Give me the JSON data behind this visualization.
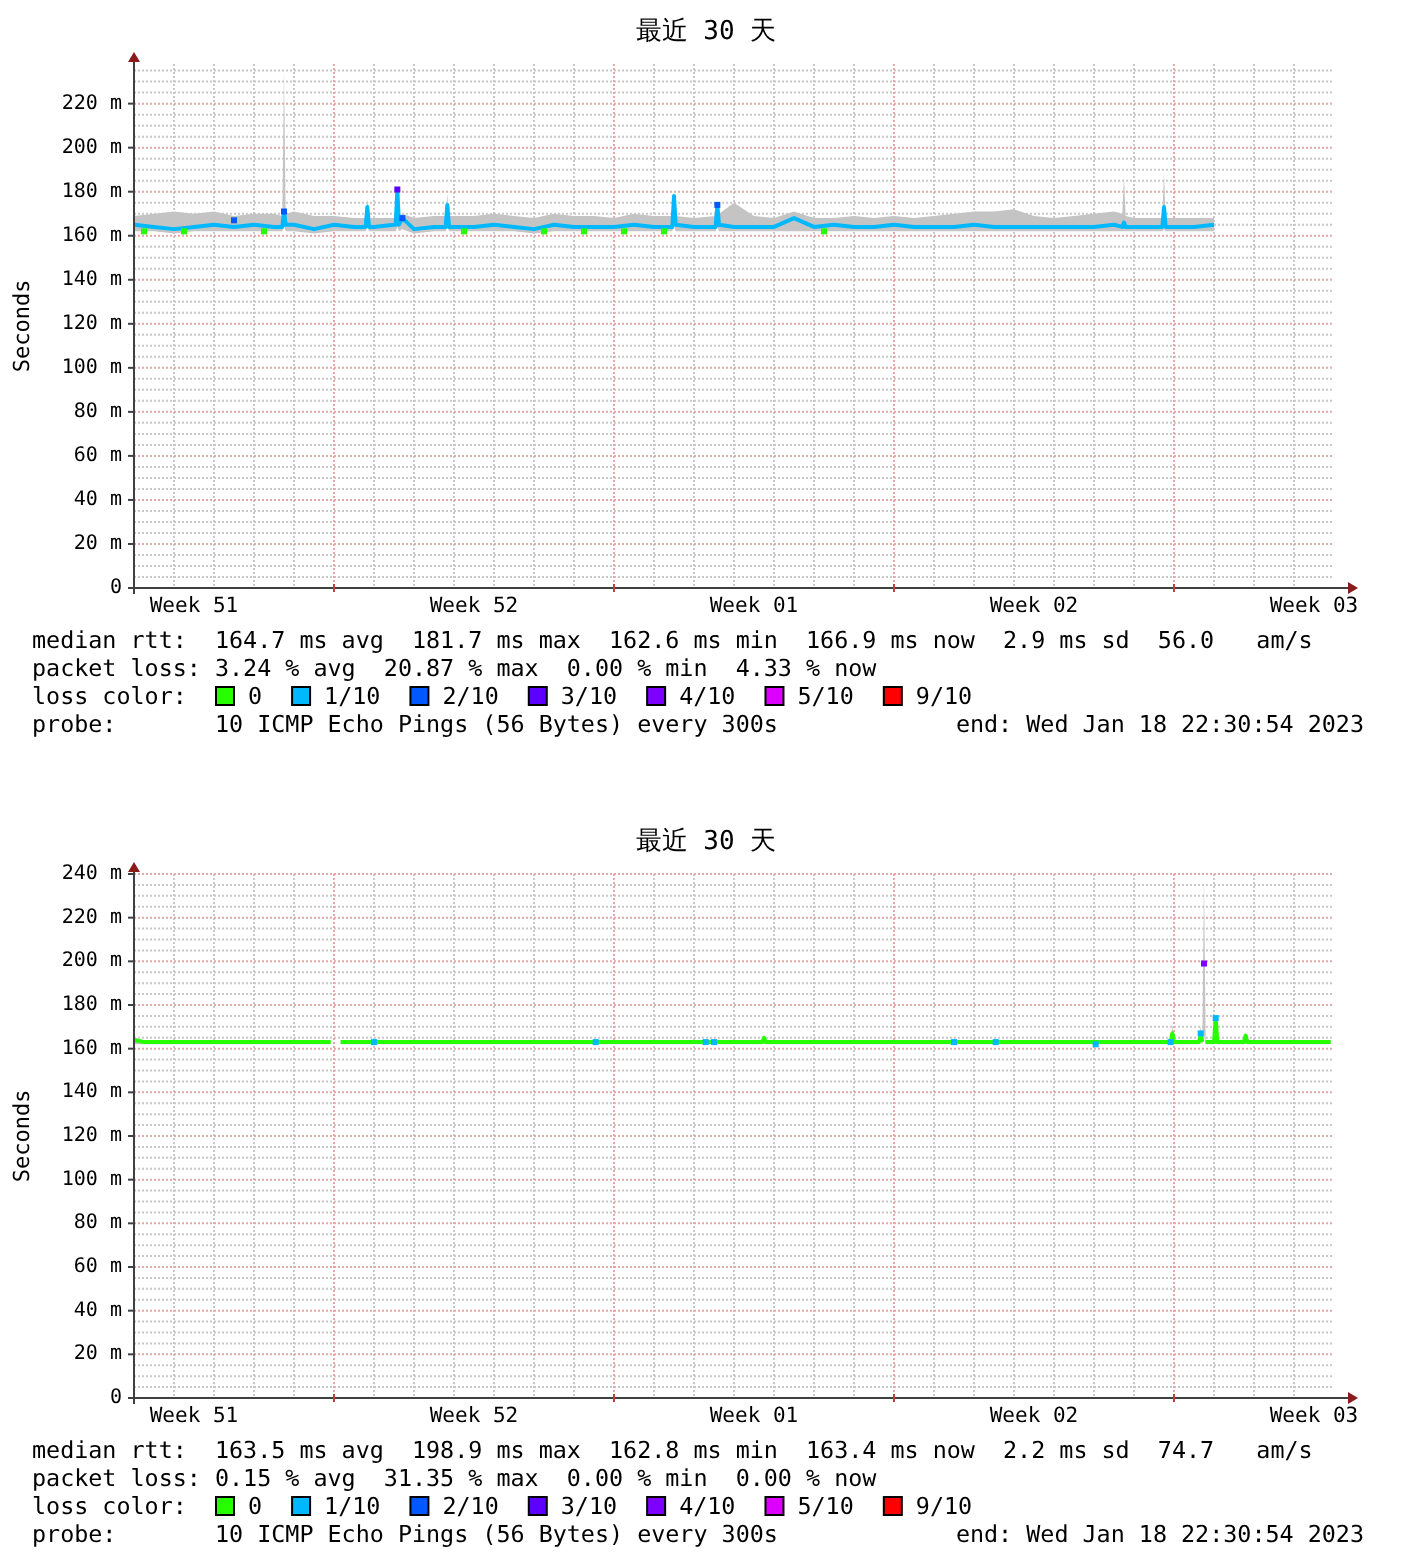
{
  "chart_data": [
    {
      "type": "line",
      "title": "最近 30 天",
      "ylabel": "Seconds",
      "xlim": [
        "2022-12-20T00:00",
        "2023-01-19T00:00"
      ],
      "xticks": [
        {
          "value": "2022-12-21T12:00",
          "label": "Week 51"
        },
        {
          "value": "2022-12-25T00:00",
          "label": null
        },
        {
          "value": "2022-12-28T12:00",
          "label": "Week 52"
        },
        {
          "value": "2023-01-01T00:00",
          "label": null
        },
        {
          "value": "2023-01-04T12:00",
          "label": "Week 01"
        },
        {
          "value": "2023-01-08T00:00",
          "label": null
        },
        {
          "value": "2023-01-11T12:00",
          "label": "Week 02"
        },
        {
          "value": "2023-01-15T00:00",
          "label": null
        },
        {
          "value": "2023-01-18T12:00",
          "label": "Week 03"
        }
      ],
      "ylim": [
        0,
        238
      ],
      "yticks": [
        0,
        {
          "value": 20,
          "label": "20 m"
        },
        {
          "value": 40,
          "label": "40 m"
        },
        {
          "value": 60,
          "label": "60 m"
        },
        {
          "value": 80,
          "label": "80 m"
        },
        {
          "value": 100,
          "label": "100 m"
        },
        {
          "value": 120,
          "label": "120 m"
        },
        {
          "value": 140,
          "label": "140 m"
        },
        {
          "value": 160,
          "label": "160 m"
        },
        {
          "value": 180,
          "label": "180 m"
        },
        {
          "value": 200,
          "label": "200 m"
        },
        {
          "value": 220,
          "label": "220 m"
        }
      ],
      "grid": true,
      "legend": "bottom",
      "legend_title": "loss color:",
      "annotations": [
        "median rtt:  164.7 ms avg  181.7 ms max  162.6 ms min  166.9 ms now  2.9 ms sd  56.0   am/s",
        "packet loss: 3.24 % avg  20.87 % max  0.00 % min  4.33 % now",
        "probe:       10 ICMP Echo Pings (56 Bytes) every 300s",
        "end: Wed Jan 18 22:30:54 2023"
      ],
      "series": [
        {
          "name": "0",
          "color": "#26ff00",
          "type": "scatter",
          "marker": "square",
          "x": [
            "2022-12-20T06:00",
            "2022-12-21T06:00",
            "2022-12-23T06:00",
            "2022-12-28T06:00",
            "2022-12-30T06:00",
            "2022-12-31T06:00",
            "2023-01-01T06:00",
            "2023-01-02T06:00",
            "2023-01-06T06:00"
          ],
          "values": [
            162,
            162,
            162,
            162,
            162,
            162,
            162,
            162,
            162
          ]
        },
        {
          "name": "1/10",
          "color": "#00b8ff",
          "x": [
            "2022-12-20T00:00",
            "2022-12-20T12:00",
            "2022-12-21T00:00",
            "2022-12-21T12:00",
            "2022-12-22T00:00",
            "2022-12-22T12:00",
            "2022-12-23T00:00",
            "2022-12-23T12:00",
            "2022-12-23T17:00",
            "2022-12-23T18:00",
            "2022-12-23T19:00",
            "2022-12-24T00:00",
            "2022-12-24T12:00",
            "2022-12-25T00:00",
            "2022-12-25T12:00",
            "2022-12-25T19:00",
            "2022-12-25T20:00",
            "2022-12-25T21:00",
            "2022-12-26T00:00",
            "2022-12-26T12:00",
            "2022-12-26T13:00",
            "2022-12-26T14:00",
            "2022-12-26T15:00",
            "2022-12-26T17:00",
            "2022-12-27T00:00",
            "2022-12-27T12:00",
            "2022-12-27T19:00",
            "2022-12-27T20:00",
            "2022-12-27T21:00",
            "2022-12-28T00:00",
            "2022-12-28T12:00",
            "2022-12-29T00:00",
            "2022-12-29T12:00",
            "2022-12-30T00:00",
            "2022-12-30T12:00",
            "2022-12-31T00:00",
            "2022-12-31T12:00",
            "2023-01-01T00:00",
            "2023-01-01T12:00",
            "2023-01-02T00:00",
            "2023-01-02T11:00",
            "2023-01-02T12:00",
            "2023-01-02T13:00",
            "2023-01-03T00:00",
            "2023-01-03T13:00",
            "2023-01-03T14:00",
            "2023-01-03T15:00",
            "2023-01-04T00:00",
            "2023-01-04T12:00",
            "2023-01-05T00:00",
            "2023-01-05T12:00",
            "2023-01-06T00:00",
            "2023-01-06T12:00",
            "2023-01-07T00:00",
            "2023-01-07T12:00",
            "2023-01-08T00:00",
            "2023-01-08T12:00",
            "2023-01-09T00:00",
            "2023-01-09T12:00",
            "2023-01-10T00:00",
            "2023-01-10T12:00",
            "2023-01-11T00:00",
            "2023-01-11T12:00",
            "2023-01-12T00:00",
            "2023-01-12T12:00",
            "2023-01-13T00:00",
            "2023-01-13T12:00",
            "2023-01-13T17:00",
            "2023-01-13T18:00",
            "2023-01-13T19:00",
            "2023-01-14T00:00",
            "2023-01-14T12:00",
            "2023-01-14T17:00",
            "2023-01-14T18:00",
            "2023-01-14T19:00",
            "2023-01-15T00:00",
            "2023-01-15T12:00",
            "2023-01-16T00:00"
          ],
          "values": [
            165,
            164,
            163,
            164,
            165,
            164,
            165,
            164,
            164,
            171,
            165,
            165,
            163,
            165,
            164,
            164,
            173,
            164,
            164,
            165,
            165,
            181,
            165,
            168,
            163,
            164,
            164,
            174,
            164,
            164,
            164,
            165,
            164,
            163,
            165,
            164,
            164,
            164,
            165,
            164,
            164,
            178,
            165,
            164,
            164,
            174,
            165,
            164,
            164,
            164,
            168,
            164,
            165,
            164,
            164,
            165,
            164,
            164,
            164,
            165,
            164,
            164,
            164,
            164,
            164,
            164,
            165,
            164,
            166,
            164,
            164,
            164,
            164,
            173,
            164,
            164,
            164,
            165
          ],
          "lower": [
            162,
            162,
            161,
            162,
            162,
            162,
            162,
            162,
            162,
            165,
            162,
            162,
            161,
            162,
            162,
            162,
            164,
            162,
            162,
            162,
            162,
            164,
            162,
            163,
            161,
            162,
            162,
            164,
            162,
            162,
            162,
            162,
            162,
            161,
            162,
            162,
            162,
            162,
            162,
            162,
            162,
            165,
            162,
            162,
            162,
            164,
            162,
            162,
            162,
            162,
            162,
            162,
            162,
            162,
            162,
            162,
            162,
            162,
            162,
            162,
            162,
            162,
            162,
            162,
            162,
            162,
            162,
            162,
            162,
            162,
            162,
            162,
            162,
            163,
            162,
            162,
            162,
            162
          ],
          "upper": [
            169,
            170,
            171,
            170,
            171,
            169,
            170,
            170,
            169,
            236,
            170,
            171,
            169,
            169,
            168,
            168,
            177,
            168,
            168,
            168,
            168,
            182,
            169,
            170,
            168,
            169,
            169,
            179,
            169,
            169,
            169,
            170,
            169,
            168,
            170,
            169,
            169,
            168,
            170,
            169,
            169,
            180,
            169,
            168,
            169,
            176,
            170,
            175,
            169,
            168,
            171,
            168,
            168,
            169,
            168,
            169,
            168,
            169,
            170,
            171,
            171,
            172,
            169,
            168,
            169,
            170,
            171,
            170,
            187,
            169,
            168,
            168,
            168,
            189,
            168,
            168,
            168,
            168
          ]
        },
        {
          "name": "2/10",
          "color": "#0059ff",
          "type": "scatter",
          "marker": "square",
          "x": [
            "2022-12-22T12:00",
            "2022-12-23T18:00",
            "2022-12-26T17:00",
            "2023-01-03T14:00"
          ],
          "values": [
            167,
            171,
            168,
            174
          ]
        },
        {
          "name": "3/10",
          "color": "#5e00ff",
          "type": "scatter",
          "marker": "square",
          "x": [
            "2022-12-26T14:00"
          ],
          "values": [
            181
          ]
        },
        {
          "name": "4/10",
          "color": "#7e00ff",
          "type": "scatter"
        },
        {
          "name": "5/10",
          "color": "#dd00ff",
          "type": "scatter"
        },
        {
          "name": "9/10",
          "color": "#ff0000",
          "type": "scatter"
        }
      ]
    },
    {
      "type": "line",
      "title": "最近 30 天",
      "ylabel": "Seconds",
      "xlim": [
        "2022-12-20T00:00",
        "2023-01-19T00:00"
      ],
      "xticks": [
        {
          "value": "2022-12-21T12:00",
          "label": "Week 51"
        },
        {
          "value": "2022-12-25T00:00",
          "label": null
        },
        {
          "value": "2022-12-28T12:00",
          "label": "Week 52"
        },
        {
          "value": "2023-01-01T00:00",
          "label": null
        },
        {
          "value": "2023-01-04T12:00",
          "label": "Week 01"
        },
        {
          "value": "2023-01-08T00:00",
          "label": null
        },
        {
          "value": "2023-01-11T12:00",
          "label": "Week 02"
        },
        {
          "value": "2023-01-15T00:00",
          "label": null
        },
        {
          "value": "2023-01-18T12:00",
          "label": "Week 03"
        }
      ],
      "ylim": [
        0,
        240
      ],
      "yticks": [
        0,
        {
          "value": 20,
          "label": "20 m"
        },
        {
          "value": 40,
          "label": "40 m"
        },
        {
          "value": 60,
          "label": "60 m"
        },
        {
          "value": 80,
          "label": "80 m"
        },
        {
          "value": 100,
          "label": "100 m"
        },
        {
          "value": 120,
          "label": "120 m"
        },
        {
          "value": 140,
          "label": "140 m"
        },
        {
          "value": 160,
          "label": "160 m"
        },
        {
          "value": 180,
          "label": "180 m"
        },
        {
          "value": 200,
          "label": "200 m"
        },
        {
          "value": 220,
          "label": "220 m"
        },
        {
          "value": 240,
          "label": "240 m"
        }
      ],
      "grid": true,
      "legend": "bottom",
      "legend_title": "loss color:",
      "annotations": [
        "median rtt:  163.5 ms avg  198.9 ms max  162.8 ms min  163.4 ms now  2.2 ms sd  74.7   am/s",
        "packet loss: 0.15 % avg  31.35 % max  0.00 % min  0.00 % now",
        "probe:       10 ICMP Echo Pings (56 Bytes) every 300s",
        "end: Wed Jan 18 22:30:54 2023"
      ],
      "series": [
        {
          "name": "0",
          "color": "#26ff00",
          "x": [
            "2022-12-20T00:00",
            "2022-12-20T06:00",
            "2022-12-21T00:00",
            "2022-12-22T00:00",
            "2022-12-23T00:00",
            "2022-12-24T00:00",
            "2022-12-24T22:00",
            "2022-12-25T01:00",
            "2022-12-25T04:00",
            "2022-12-26T00:00",
            "2022-12-27T00:00",
            "2022-12-28T00:00",
            "2022-12-29T00:00",
            "2022-12-30T00:00",
            "2022-12-31T00:00",
            "2023-01-01T00:00",
            "2023-01-02T00:00",
            "2023-01-03T00:00",
            "2023-01-04T00:00",
            "2023-01-04T17:00",
            "2023-01-04T18:00",
            "2023-01-04T19:00",
            "2023-01-05T00:00",
            "2023-01-06T00:00",
            "2023-01-07T00:00",
            "2023-01-08T00:00",
            "2023-01-09T00:00",
            "2023-01-10T00:00",
            "2023-01-11T00:00",
            "2023-01-12T00:00",
            "2023-01-13T00:00",
            "2023-01-14T00:00",
            "2023-01-14T22:00",
            "2023-01-14T23:00",
            "2023-01-15T00:00",
            "2023-01-15T12:00",
            "2023-01-15T15:00",
            "2023-01-15T16:00",
            "2023-01-15T17:00",
            "2023-01-15T18:00",
            "2023-01-15T19:00",
            "2023-01-16T00:00",
            "2023-01-16T01:00",
            "2023-01-16T02:00",
            "2023-01-16T18:00",
            "2023-01-16T19:00",
            "2023-01-16T20:00",
            "2023-01-17T00:00",
            "2023-01-18T00:00",
            "2023-01-18T22:00"
          ],
          "values": [
            164,
            163,
            163,
            163,
            163,
            163,
            163,
            null,
            163,
            163,
            163,
            163,
            163,
            163,
            163,
            163,
            163,
            163,
            163,
            163,
            165,
            163,
            163,
            163,
            163,
            163,
            163,
            163,
            163,
            163,
            163,
            163,
            163,
            167,
            163,
            163,
            163,
            166,
            163,
            null,
            163,
            163,
            174,
            163,
            163,
            166,
            163,
            163,
            163,
            163
          ],
          "lower": [
            162,
            162,
            162,
            162,
            162,
            162,
            162,
            null,
            162,
            162,
            162,
            162,
            162,
            162,
            162,
            162,
            162,
            162,
            162,
            162,
            163,
            162,
            162,
            162,
            162,
            162,
            162,
            162,
            162,
            162,
            162,
            162,
            162,
            163,
            162,
            162,
            162,
            163,
            162,
            166,
            162,
            162,
            163,
            162,
            162,
            163,
            162,
            162,
            162,
            162
          ],
          "upper": [
            165,
            164,
            164,
            164,
            164,
            164,
            164,
            null,
            164,
            164,
            164,
            164,
            164,
            164,
            164,
            164,
            164,
            164,
            164,
            164,
            166,
            164,
            164,
            164,
            164,
            164,
            164,
            164,
            164,
            164,
            164,
            164,
            164,
            171,
            164,
            164,
            164,
            170,
            164,
            239,
            164,
            164,
            175,
            164,
            164,
            167,
            164,
            164,
            164,
            164
          ]
        },
        {
          "name": "1/10",
          "color": "#00b8ff",
          "type": "scatter",
          "marker": "square",
          "x": [
            "2022-12-26T00:00",
            "2022-12-31T13:00",
            "2023-01-03T07:00",
            "2023-01-03T12:00",
            "2023-01-09T12:00",
            "2023-01-10T13:00",
            "2023-01-13T01:00",
            "2023-01-14T22:00",
            "2023-01-15T16:00",
            "2023-01-16T01:00"
          ],
          "values": [
            163,
            163,
            163,
            163,
            163,
            163,
            162,
            163,
            167,
            174
          ]
        },
        {
          "name": "2/10",
          "color": "#0059ff",
          "type": "scatter"
        },
        {
          "name": "3/10",
          "color": "#5e00ff",
          "type": "scatter"
        },
        {
          "name": "4/10",
          "color": "#7e00ff",
          "type": "scatter",
          "marker": "square",
          "x": [
            "2023-01-15T18:00"
          ],
          "values": [
            199
          ]
        },
        {
          "name": "5/10",
          "color": "#dd00ff",
          "type": "scatter"
        },
        {
          "name": "9/10",
          "color": "#ff0000",
          "type": "scatter"
        }
      ]
    }
  ]
}
